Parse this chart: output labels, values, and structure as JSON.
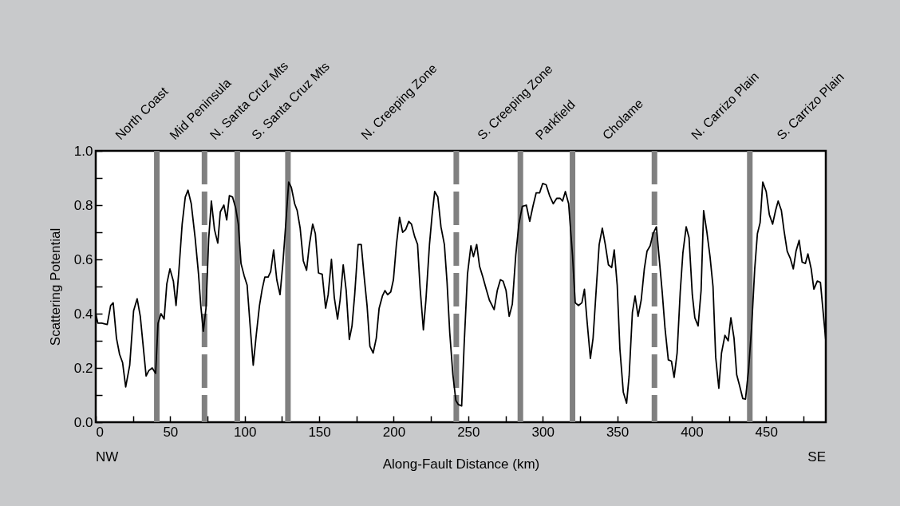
{
  "chart_data": {
    "type": "line",
    "xlabel": "Along-Fault Distance (km)",
    "ylabel": "Scattering Potential",
    "xlim": [
      0,
      490
    ],
    "ylim": [
      0,
      1
    ],
    "xticks": [
      0,
      {
        "value": 25,
        "label": null
      },
      50,
      {
        "value": 75,
        "label": null
      },
      100,
      {
        "value": 125,
        "label": null
      },
      150,
      {
        "value": 175,
        "label": null
      },
      200,
      {
        "value": 225,
        "label": null
      },
      250,
      {
        "value": 275,
        "label": null
      },
      300,
      {
        "value": 325,
        "label": null
      },
      350,
      {
        "value": 375,
        "label": null
      },
      400,
      {
        "value": 425,
        "label": null
      },
      450,
      {
        "value": 475,
        "label": null
      }
    ],
    "yticks": [
      {
        "value": 0,
        "label": "0.0"
      },
      {
        "value": 0.1,
        "label": null
      },
      0.2,
      {
        "value": 0.3,
        "label": null
      },
      0.4,
      {
        "value": 0.5,
        "label": null
      },
      0.6,
      {
        "value": 0.7,
        "label": null
      },
      0.8,
      {
        "value": 0.9,
        "label": null
      },
      {
        "value": 1,
        "label": "1.0"
      }
    ],
    "grid": false,
    "line_style": "solid",
    "marker": "none",
    "annotations": [
      "North Coast",
      "Mid Peninsula",
      "N. Santa Cruz Mts",
      "S. Santa Cruz Mts",
      "N. Creeping Zone",
      "S. Creeping Zone",
      "Parkfield",
      "Cholame",
      "N. Carrizo Plain",
      "S. Carrizo Plain",
      "NW",
      "SE"
    ],
    "ref_lines": [
      {
        "axis": "x",
        "value": 41,
        "color": "#808080",
        "line_style": "solid"
      },
      {
        "axis": "x",
        "value": 73,
        "color": "#808080",
        "line_style": "dashed"
      },
      {
        "axis": "x",
        "value": 95,
        "color": "#808080",
        "line_style": "solid"
      },
      {
        "axis": "x",
        "value": 129,
        "color": "#808080",
        "line_style": "solid"
      },
      {
        "axis": "x",
        "value": 242,
        "color": "#808080",
        "line_style": "dashed"
      },
      {
        "axis": "x",
        "value": 285,
        "color": "#808080",
        "line_style": "solid"
      },
      {
        "axis": "x",
        "value": 320,
        "color": "#808080",
        "line_style": "solid"
      },
      {
        "axis": "x",
        "value": 375,
        "color": "#808080",
        "line_style": "dashed"
      },
      {
        "axis": "x",
        "value": 439,
        "color": "#808080",
        "line_style": "solid"
      }
    ],
    "series": [
      {
        "color": "#000000",
        "x": [
          0,
          1.4,
          4,
          7.7,
          10,
          11.7,
          13.9,
          16,
          18,
          20.1,
          22.8,
          25.4,
          27.8,
          29.9,
          33.8,
          35.6,
          37.9,
          40.2,
          41.8,
          43.8,
          45.9,
          47.7,
          49.8,
          52.1,
          53.9,
          55.7,
          58,
          60.1,
          61.9,
          64.1,
          66.7,
          69,
          70.5,
          72.2,
          74,
          75.8,
          77.6,
          79.7,
          81.9,
          83.6,
          86,
          87.9,
          89.7,
          91.8,
          93.9,
          95.7,
          97.5,
          99.6,
          101.6,
          103.7,
          105.7,
          107.8,
          109.9,
          111.7,
          113.5,
          115.7,
          117.4,
          119.4,
          121.5,
          123.7,
          125.6,
          127.8,
          129.5,
          131.3,
          133.5,
          135.2,
          137.2,
          139.3,
          141.5,
          143.4,
          145.6,
          147.4,
          149.5,
          152,
          154.3,
          156,
          158.2,
          160.1,
          162.3,
          164,
          166.1,
          168.1,
          170.2,
          172,
          173.8,
          176.1,
          178.2,
          180,
          182.1,
          184,
          186.2,
          188.3,
          190.2,
          192.4,
          194.1,
          195.9,
          198,
          199.8,
          201.8,
          203.9,
          206,
          208,
          210.1,
          211.9,
          214,
          216,
          217.7,
          219.9,
          221.6,
          224,
          225.7,
          227.5,
          229.6,
          231.7,
          234,
          235.8,
          237.6,
          239.7,
          241.7,
          243.4,
          245.6,
          247.3,
          249.5,
          251.8,
          253.5,
          255.7,
          257.6,
          259.8,
          262.1,
          264.2,
          267.4,
          269.5,
          271.6,
          273.4,
          275.4,
          277.5,
          279.6,
          281.9,
          284,
          286.3,
          289,
          291.3,
          293.4,
          295.6,
          297.9,
          300,
          302.3,
          304.6,
          307.1,
          309.4,
          311.7,
          313.3,
          315.2,
          317.4,
          320,
          321.8,
          324,
          326.3,
          328,
          329.8,
          332,
          333.8,
          336.1,
          337.9,
          340,
          342,
          344.1,
          346.3,
          348,
          350,
          351.8,
          354.1,
          356.3,
          358,
          360.2,
          362,
          364,
          366.1,
          368.2,
          370,
          372.1,
          374.1,
          376.3,
          378,
          380.2,
          382.1,
          384.3,
          386.4,
          388.2,
          390.2,
          392.3,
          394.1,
          396.3,
          398.2,
          400.4,
          402.1,
          404.3,
          406.3,
          408,
          410.2,
          412.3,
          414.3,
          416.1,
          418.2,
          420,
          422.3,
          424.5,
          426.3,
          428.4,
          430.2,
          432.1,
          434.3,
          436.1,
          438.2,
          440.2,
          442.3,
          444.1,
          445.9,
          447.7,
          450,
          452.1,
          454.3,
          456.3,
          458,
          460.2,
          462,
          464.1,
          466.1,
          468.2,
          470,
          472.1,
          474.1,
          476.3,
          478,
          480.2,
          482,
          484.3,
          486.4,
          490
        ],
        "values": [
          0.4,
          0.365,
          0.365,
          0.36,
          0.43,
          0.44,
          0.31,
          0.25,
          0.22,
          0.13,
          0.21,
          0.41,
          0.455,
          0.39,
          0.17,
          0.19,
          0.2,
          0.18,
          0.365,
          0.4,
          0.38,
          0.51,
          0.565,
          0.52,
          0.43,
          0.55,
          0.73,
          0.83,
          0.855,
          0.805,
          0.68,
          0.545,
          0.43,
          0.335,
          0.42,
          0.675,
          0.815,
          0.71,
          0.66,
          0.775,
          0.8,
          0.745,
          0.835,
          0.83,
          0.79,
          0.73,
          0.585,
          0.54,
          0.505,
          0.35,
          0.21,
          0.325,
          0.43,
          0.49,
          0.535,
          0.535,
          0.555,
          0.635,
          0.525,
          0.47,
          0.585,
          0.75,
          0.885,
          0.865,
          0.805,
          0.78,
          0.715,
          0.595,
          0.56,
          0.655,
          0.73,
          0.695,
          0.55,
          0.545,
          0.42,
          0.47,
          0.6,
          0.46,
          0.38,
          0.45,
          0.58,
          0.485,
          0.305,
          0.355,
          0.47,
          0.655,
          0.655,
          0.545,
          0.43,
          0.28,
          0.255,
          0.31,
          0.42,
          0.465,
          0.485,
          0.47,
          0.48,
          0.525,
          0.655,
          0.755,
          0.7,
          0.71,
          0.74,
          0.73,
          0.685,
          0.655,
          0.495,
          0.34,
          0.45,
          0.655,
          0.76,
          0.85,
          0.83,
          0.72,
          0.655,
          0.515,
          0.33,
          0.175,
          0.08,
          0.065,
          0.06,
          0.29,
          0.545,
          0.65,
          0.61,
          0.655,
          0.575,
          0.535,
          0.49,
          0.45,
          0.415,
          0.485,
          0.525,
          0.52,
          0.485,
          0.39,
          0.435,
          0.615,
          0.73,
          0.795,
          0.8,
          0.74,
          0.795,
          0.845,
          0.845,
          0.88,
          0.875,
          0.835,
          0.805,
          0.825,
          0.825,
          0.815,
          0.85,
          0.805,
          0.615,
          0.44,
          0.43,
          0.44,
          0.49,
          0.37,
          0.235,
          0.31,
          0.505,
          0.655,
          0.715,
          0.655,
          0.58,
          0.57,
          0.635,
          0.505,
          0.27,
          0.11,
          0.07,
          0.17,
          0.405,
          0.465,
          0.39,
          0.45,
          0.565,
          0.63,
          0.65,
          0.695,
          0.72,
          0.615,
          0.48,
          0.345,
          0.23,
          0.225,
          0.165,
          0.255,
          0.48,
          0.625,
          0.72,
          0.68,
          0.47,
          0.385,
          0.355,
          0.485,
          0.78,
          0.7,
          0.61,
          0.5,
          0.24,
          0.125,
          0.255,
          0.32,
          0.3,
          0.385,
          0.31,
          0.175,
          0.135,
          0.087,
          0.085,
          0.195,
          0.35,
          0.565,
          0.695,
          0.735,
          0.885,
          0.85,
          0.765,
          0.73,
          0.78,
          0.815,
          0.78,
          0.705,
          0.63,
          0.605,
          0.565,
          0.63,
          0.67,
          0.59,
          0.585,
          0.62,
          0.565,
          0.49,
          0.52,
          0.515,
          0.3
        ]
      }
    ]
  }
}
